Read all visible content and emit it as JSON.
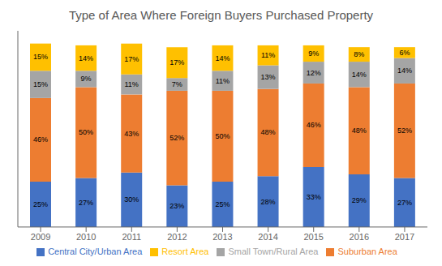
{
  "chart_data": {
    "type": "bar",
    "title": "Type of Area Where Foreign Buyers Purchased Property",
    "categories": [
      "2009",
      "2010",
      "2011",
      "2012",
      "2013",
      "2014",
      "2015",
      "2016",
      "2017"
    ],
    "series": [
      {
        "name": "Central City/Urban Area",
        "color": "#4472C4",
        "values": [
          25,
          27,
          30,
          23,
          25,
          28,
          33,
          29,
          27
        ],
        "value_labels": [
          "25%",
          "27%",
          "30%",
          "23%",
          "25%",
          "28%",
          "33%",
          "29%",
          "27%"
        ]
      },
      {
        "name": "Suburban Area",
        "color": "#ED7D31",
        "values": [
          46,
          50,
          43,
          52,
          50,
          48,
          46,
          48,
          52
        ],
        "value_labels": [
          "46%",
          "50%",
          "43%",
          "52%",
          "50%",
          "48%",
          "46%",
          "48%",
          "52%"
        ]
      },
      {
        "name": "Small Town/Rural Area",
        "color": "#A5A5A5",
        "values": [
          15,
          9,
          11,
          7,
          11,
          13,
          12,
          14,
          14
        ],
        "value_labels": [
          "15%",
          "9%",
          "11%",
          "7%",
          "11%",
          "13%",
          "12%",
          "14%",
          "14%"
        ]
      },
      {
        "name": "Resort Area",
        "color": "#FFC000",
        "values": [
          15,
          14,
          17,
          17,
          14,
          11,
          9,
          8,
          6
        ],
        "value_labels": [
          "15%",
          "14%",
          "17%",
          "17%",
          "14%",
          "11%",
          "9%",
          "8%",
          "6%"
        ]
      }
    ],
    "ylim": [
      0,
      108
    ],
    "stacked": true,
    "data_labels": true,
    "grid": false,
    "legend": "bottom",
    "tick_labels": "x"
  }
}
